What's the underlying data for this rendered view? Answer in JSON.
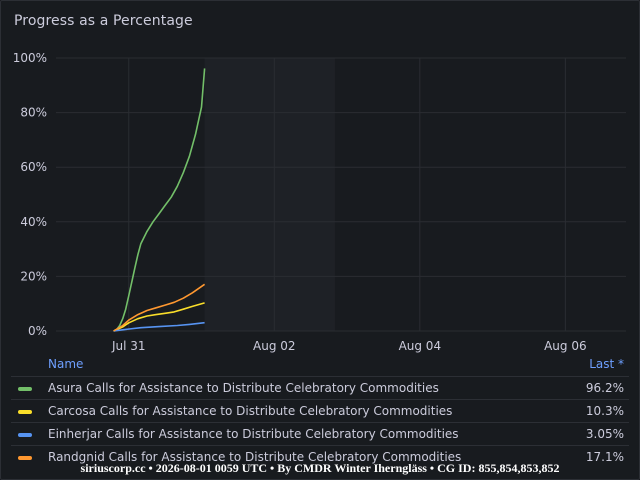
{
  "panel": {
    "title": "Progress as a Percentage"
  },
  "legend": {
    "name_header": "Name",
    "last_header": "Last *",
    "items": [
      {
        "name": "Asura Calls for Assistance to Distribute Celebratory Commodities",
        "last": "96.2%",
        "color": "#73bf69"
      },
      {
        "name": "Carcosa Calls for Assistance to Distribute Celebratory Commodities",
        "last": "10.3%",
        "color": "#fade2a"
      },
      {
        "name": "Einherjar Calls for Assistance to Distribute Celebratory Commodities",
        "last": "3.05%",
        "color": "#5794f2"
      },
      {
        "name": "Randgnid Calls for Assistance to Distribute Celebratory Commodities",
        "last": "17.1%",
        "color": "#ff9830"
      }
    ]
  },
  "footer": {
    "watermark": "siriuscorp.cc • 2026-08-01 0059 UTC • By CMDR Winter Iherngläss • CG ID: 855,854,853,852"
  },
  "chart_data": {
    "type": "line",
    "title": "Progress as a Percentage",
    "x_range": [
      "2026-07-30T00:00",
      "2026-08-06T20:00"
    ],
    "ylim": [
      0,
      100
    ],
    "y_ticks": [
      0,
      20,
      40,
      60,
      80,
      100
    ],
    "y_tick_labels": [
      "0%",
      "20%",
      "40%",
      "60%",
      "80%",
      "100%"
    ],
    "x_ticks": [
      "2026-07-31T00:00",
      "2026-08-02T00:00",
      "2026-08-04T00:00",
      "2026-08-06T00:00"
    ],
    "x_tick_labels": [
      "Jul 31",
      "Aug 02",
      "Aug 04",
      "Aug 06"
    ],
    "grid": true,
    "legend": "bottom",
    "highlight_band": [
      "2026-08-01T01:00",
      "2026-08-02T20:00"
    ],
    "series": [
      {
        "name": "Asura Calls for Assistance to Distribute Celebratory Commodities",
        "color": "#73bf69",
        "points": [
          [
            "2026-07-30T19:00",
            0
          ],
          [
            "2026-07-30T20:00",
            0.5
          ],
          [
            "2026-07-30T21:00",
            2
          ],
          [
            "2026-07-30T22:00",
            4.5
          ],
          [
            "2026-07-30T23:00",
            8
          ],
          [
            "2026-07-31T00:00",
            13
          ],
          [
            "2026-07-31T01:00",
            18
          ],
          [
            "2026-07-31T02:00",
            23
          ],
          [
            "2026-07-31T03:00",
            28
          ],
          [
            "2026-07-31T04:00",
            32
          ],
          [
            "2026-07-31T06:00",
            36.5
          ],
          [
            "2026-07-31T08:00",
            40
          ],
          [
            "2026-07-31T10:00",
            43
          ],
          [
            "2026-07-31T12:00",
            46
          ],
          [
            "2026-07-31T14:00",
            49
          ],
          [
            "2026-07-31T16:00",
            53
          ],
          [
            "2026-07-31T18:00",
            58
          ],
          [
            "2026-07-31T20:00",
            64
          ],
          [
            "2026-07-31T22:00",
            72
          ],
          [
            "2026-08-01T00:00",
            82
          ],
          [
            "2026-08-01T01:00",
            96.2
          ]
        ]
      },
      {
        "name": "Carcosa Calls for Assistance to Distribute Celebratory Commodities",
        "color": "#fade2a",
        "points": [
          [
            "2026-07-30T19:00",
            0
          ],
          [
            "2026-07-30T22:00",
            1.5
          ],
          [
            "2026-07-31T00:00",
            3
          ],
          [
            "2026-07-31T03:00",
            4.5
          ],
          [
            "2026-07-31T06:00",
            5.5
          ],
          [
            "2026-07-31T09:00",
            6
          ],
          [
            "2026-07-31T12:00",
            6.5
          ],
          [
            "2026-07-31T15:00",
            7
          ],
          [
            "2026-07-31T18:00",
            8
          ],
          [
            "2026-07-31T21:00",
            9
          ],
          [
            "2026-08-01T01:00",
            10.3
          ]
        ]
      },
      {
        "name": "Einherjar Calls for Assistance to Distribute Celebratory Commodities",
        "color": "#5794f2",
        "points": [
          [
            "2026-07-30T19:00",
            0
          ],
          [
            "2026-07-30T23:00",
            0.6
          ],
          [
            "2026-07-31T04:00",
            1.2
          ],
          [
            "2026-07-31T10:00",
            1.6
          ],
          [
            "2026-07-31T16:00",
            2
          ],
          [
            "2026-07-31T20:00",
            2.4
          ],
          [
            "2026-08-01T01:00",
            3.05
          ]
        ]
      },
      {
        "name": "Randgnid Calls for Assistance to Distribute Celebratory Commodities",
        "color": "#ff9830",
        "points": [
          [
            "2026-07-30T19:00",
            0
          ],
          [
            "2026-07-30T22:00",
            2
          ],
          [
            "2026-07-31T00:00",
            4
          ],
          [
            "2026-07-31T03:00",
            6
          ],
          [
            "2026-07-31T06:00",
            7.5
          ],
          [
            "2026-07-31T09:00",
            8.5
          ],
          [
            "2026-07-31T12:00",
            9.5
          ],
          [
            "2026-07-31T15:00",
            10.5
          ],
          [
            "2026-07-31T18:00",
            12
          ],
          [
            "2026-07-31T21:00",
            14
          ],
          [
            "2026-08-01T01:00",
            17.1
          ]
        ]
      }
    ]
  }
}
